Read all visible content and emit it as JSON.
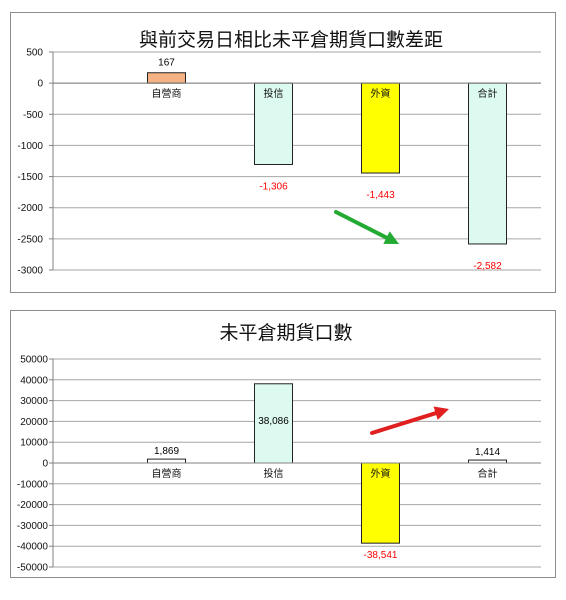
{
  "chart_data": [
    {
      "type": "bar",
      "title": "與前交易日相比未平倉期貨口數差距",
      "categories": [
        "自營商",
        "投信",
        "外資",
        "合計"
      ],
      "values": [
        167,
        -1306,
        -1443,
        -2582
      ],
      "value_labels": [
        "167",
        "-1,306",
        "-1,443",
        "-2,582"
      ],
      "bar_colors": [
        "#F4B183",
        "#DDFAF0",
        "#FFFF00",
        "#DDFAF0"
      ],
      "label_colors": [
        "#000000",
        "#FF0000",
        "#FF0000",
        "#FF0000"
      ],
      "ylim": [
        -3000,
        500
      ],
      "yticks": [
        500,
        0,
        -500,
        -1000,
        -1500,
        -2000,
        -2500,
        -3000
      ],
      "grid": true,
      "annotation_arrow": {
        "color": "#22AA33",
        "direction": "down-right"
      }
    },
    {
      "type": "bar",
      "title": "未平倉期貨口數",
      "categories": [
        "自營商",
        "投信",
        "外資",
        "合計"
      ],
      "values": [
        1869,
        38086,
        -38541,
        1414
      ],
      "value_labels": [
        "1,869",
        "38,086",
        "-38,541",
        "1,414"
      ],
      "bar_colors": [
        "#FFFFFF",
        "#DDFAF0",
        "#FFFF00",
        "#FFFFFF"
      ],
      "label_colors": [
        "#000000",
        "#000000",
        "#FF0000",
        "#000000"
      ],
      "ylim": [
        -50000,
        50000
      ],
      "yticks": [
        50000,
        40000,
        30000,
        20000,
        10000,
        0,
        -10000,
        -20000,
        -30000,
        -40000,
        -50000
      ],
      "grid": true,
      "annotation_arrow": {
        "color": "#E02020",
        "direction": "up-right"
      }
    }
  ]
}
